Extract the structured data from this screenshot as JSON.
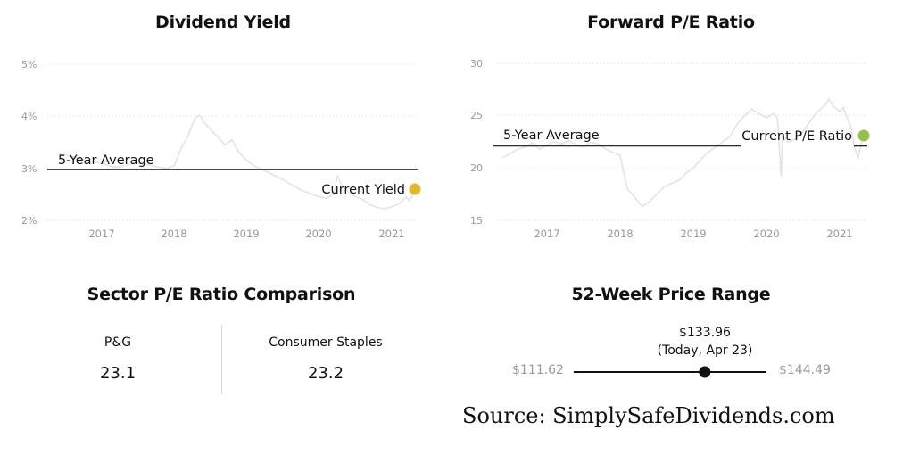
{
  "chart_data": [
    {
      "type": "line",
      "title": "Dividend Yield",
      "y_ticks": [
        "5%",
        "4%",
        "3%",
        "2%"
      ],
      "y_tick_values": [
        5,
        4,
        3,
        2
      ],
      "x_ticks": [
        "2017",
        "2018",
        "2019",
        "2020",
        "2021"
      ],
      "x_tick_values": [
        2017,
        2018,
        2019,
        2020,
        2021
      ],
      "xlim": [
        2016.4,
        2021.35
      ],
      "ylim": [
        1.9,
        5.1
      ],
      "grid": "dotted horizontal",
      "series": [
        {
          "color": "#e3e3e3",
          "points": [
            [
              2016.4,
              3.28
            ],
            [
              2016.5,
              3.26
            ],
            [
              2016.6,
              3.22
            ],
            [
              2016.7,
              3.18
            ],
            [
              2016.8,
              3.15
            ],
            [
              2016.9,
              3.12
            ],
            [
              2017.0,
              3.1
            ],
            [
              2017.1,
              3.05
            ],
            [
              2017.2,
              3.02
            ],
            [
              2017.3,
              3.05
            ],
            [
              2017.4,
              3.08
            ],
            [
              2017.5,
              3.1
            ],
            [
              2017.6,
              3.08
            ],
            [
              2017.7,
              3.05
            ],
            [
              2017.8,
              3.02
            ],
            [
              2017.9,
              3.0
            ],
            [
              2018.0,
              3.05
            ],
            [
              2018.1,
              3.4
            ],
            [
              2018.2,
              3.65
            ],
            [
              2018.25,
              3.85
            ],
            [
              2018.3,
              3.98
            ],
            [
              2018.35,
              4.02
            ],
            [
              2018.4,
              3.9
            ],
            [
              2018.5,
              3.75
            ],
            [
              2018.6,
              3.6
            ],
            [
              2018.7,
              3.45
            ],
            [
              2018.75,
              3.5
            ],
            [
              2018.8,
              3.55
            ],
            [
              2018.85,
              3.4
            ],
            [
              2018.9,
              3.3
            ],
            [
              2019.0,
              3.15
            ],
            [
              2019.1,
              3.05
            ],
            [
              2019.2,
              2.98
            ],
            [
              2019.3,
              2.92
            ],
            [
              2019.4,
              2.85
            ],
            [
              2019.5,
              2.78
            ],
            [
              2019.6,
              2.7
            ],
            [
              2019.7,
              2.62
            ],
            [
              2019.8,
              2.55
            ],
            [
              2019.9,
              2.5
            ],
            [
              2020.0,
              2.45
            ],
            [
              2020.1,
              2.42
            ],
            [
              2020.2,
              2.5
            ],
            [
              2020.25,
              2.85
            ],
            [
              2020.3,
              2.7
            ],
            [
              2020.4,
              2.55
            ],
            [
              2020.5,
              2.45
            ],
            [
              2020.6,
              2.4
            ],
            [
              2020.7,
              2.3
            ],
            [
              2020.8,
              2.25
            ],
            [
              2020.9,
              2.22
            ],
            [
              2021.0,
              2.26
            ],
            [
              2021.1,
              2.32
            ],
            [
              2021.2,
              2.45
            ],
            [
              2021.25,
              2.38
            ],
            [
              2021.32,
              2.6
            ]
          ]
        },
        {
          "name": "5-Year Average",
          "color": "#111111",
          "style": "solid",
          "value": 2.98
        }
      ],
      "annotations": [
        {
          "text": "5-Year Average",
          "x": 2016.55,
          "y": 3.16
        },
        {
          "text": "Current Yield",
          "x": 2021.15,
          "y": 2.6
        }
      ],
      "current_marker": {
        "x": 2021.32,
        "y": 2.6,
        "color": "#e5b72c"
      }
    },
    {
      "type": "line",
      "title": "Forward P/E Ratio",
      "y_ticks": [
        "30",
        "25",
        "20",
        "15"
      ],
      "y_tick_values": [
        30,
        25,
        20,
        15
      ],
      "x_ticks": [
        "2017",
        "2018",
        "2019",
        "2020",
        "2021"
      ],
      "x_tick_values": [
        2017,
        2018,
        2019,
        2020,
        2021
      ],
      "xlim": [
        2016.4,
        2021.35
      ],
      "ylim": [
        14.6,
        30.4
      ],
      "grid": "dotted horizontal",
      "series": [
        {
          "color": "#e3e3e3",
          "points": [
            [
              2016.4,
              21.0
            ],
            [
              2016.5,
              21.4
            ],
            [
              2016.6,
              21.8
            ],
            [
              2016.7,
              22.0
            ],
            [
              2016.8,
              22.4
            ],
            [
              2016.9,
              21.8
            ],
            [
              2017.0,
              22.2
            ],
            [
              2017.1,
              22.5
            ],
            [
              2017.2,
              22.3
            ],
            [
              2017.3,
              22.6
            ],
            [
              2017.4,
              22.2
            ],
            [
              2017.5,
              22.0
            ],
            [
              2017.6,
              22.5
            ],
            [
              2017.7,
              22.3
            ],
            [
              2017.8,
              21.8
            ],
            [
              2017.9,
              21.5
            ],
            [
              2018.0,
              21.2
            ],
            [
              2018.05,
              19.5
            ],
            [
              2018.1,
              18.0
            ],
            [
              2018.2,
              17.2
            ],
            [
              2018.3,
              16.3
            ],
            [
              2018.4,
              16.8
            ],
            [
              2018.5,
              17.5
            ],
            [
              2018.6,
              18.2
            ],
            [
              2018.7,
              18.5
            ],
            [
              2018.8,
              18.8
            ],
            [
              2018.9,
              19.5
            ],
            [
              2019.0,
              20.0
            ],
            [
              2019.1,
              20.8
            ],
            [
              2019.2,
              21.5
            ],
            [
              2019.3,
              22.0
            ],
            [
              2019.4,
              22.5
            ],
            [
              2019.5,
              23.0
            ],
            [
              2019.6,
              24.2
            ],
            [
              2019.7,
              25.0
            ],
            [
              2019.8,
              25.6
            ],
            [
              2019.9,
              25.2
            ],
            [
              2020.0,
              24.8
            ],
            [
              2020.1,
              25.2
            ],
            [
              2020.15,
              24.8
            ],
            [
              2020.2,
              19.2
            ],
            [
              2020.22,
              23.0
            ],
            [
              2020.3,
              22.5
            ],
            [
              2020.4,
              22.8
            ],
            [
              2020.5,
              23.5
            ],
            [
              2020.6,
              24.5
            ],
            [
              2020.7,
              25.4
            ],
            [
              2020.8,
              26.0
            ],
            [
              2020.85,
              26.6
            ],
            [
              2020.9,
              26.0
            ],
            [
              2021.0,
              25.4
            ],
            [
              2021.05,
              25.8
            ],
            [
              2021.1,
              24.8
            ],
            [
              2021.15,
              24.0
            ],
            [
              2021.2,
              22.0
            ],
            [
              2021.25,
              21.0
            ],
            [
              2021.32,
              23.1
            ]
          ]
        },
        {
          "name": "5-Year Average",
          "color": "#111111",
          "style": "solid",
          "value": 22.1
        }
      ],
      "annotations": [
        {
          "text": "5-Year Average",
          "x": 2016.55,
          "y": 23.1
        },
        {
          "text": "Current P/E Ratio",
          "x": 2021.15,
          "y": 23.1
        }
      ],
      "current_marker": {
        "x": 2021.32,
        "y": 23.1,
        "color": "#95bf4e"
      }
    }
  ],
  "sector": {
    "title": "Sector P/E Ratio Comparison",
    "left_name": "P&G",
    "left_value": "23.1",
    "right_name": "Consumer Staples",
    "right_value": "23.2"
  },
  "range52": {
    "title": "52-Week Price Range",
    "low": "$111.62",
    "high": "$144.49",
    "low_value": 111.62,
    "high_value": 144.49,
    "current_value": 133.96,
    "current_price": "$133.96",
    "current_date": "(Today, Apr 23)"
  },
  "source": "Source: SimplySafeDividends.com"
}
